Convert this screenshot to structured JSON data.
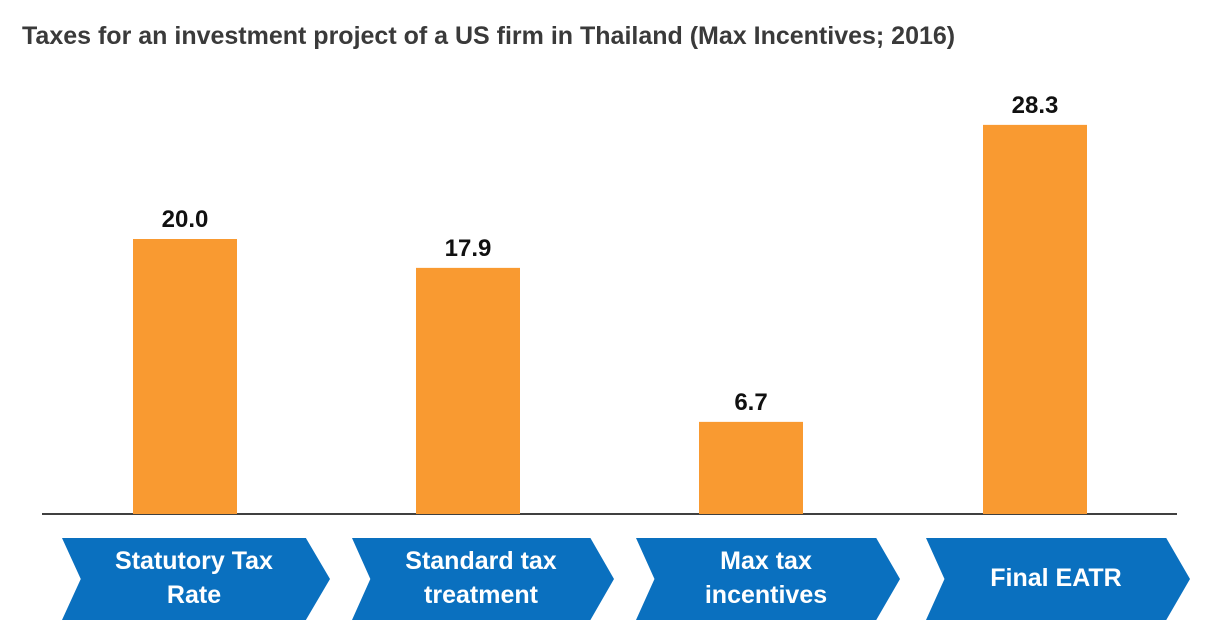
{
  "chart_data": {
    "type": "bar",
    "title": "Taxes for an investment project of a US firm in Thailand (Max Incentives; 2016)",
    "categories": [
      "Statutory Tax Rate",
      "Standard tax treatment",
      "Max tax incentives",
      "Final EATR"
    ],
    "values": [
      20.0,
      17.9,
      6.7,
      28.3
    ],
    "value_labels": [
      "20.0",
      "17.9",
      "6.7",
      "28.3"
    ],
    "color": "#f99a31",
    "category_color": "#0a70bf"
  }
}
